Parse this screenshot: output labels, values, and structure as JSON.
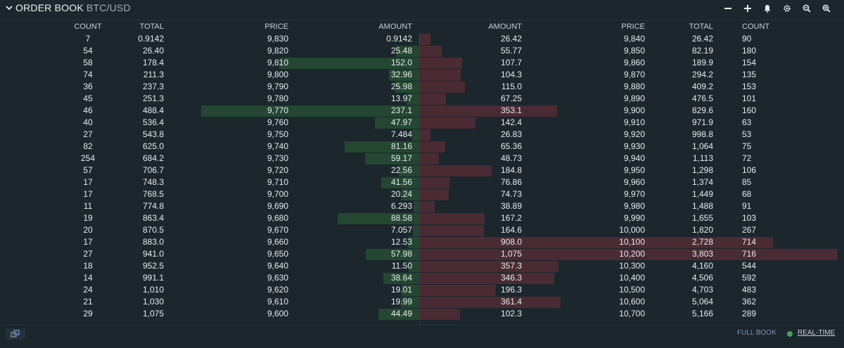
{
  "header": {
    "title": "ORDER BOOK",
    "pair": "BTC/USD",
    "tools": [
      "minus-icon",
      "plus-icon",
      "bell-icon",
      "gear-icon",
      "zoom-out-icon",
      "zoom-in-icon"
    ]
  },
  "columns": {
    "bids": [
      "COUNT",
      "TOTAL",
      "PRICE",
      "AMOUNT"
    ],
    "asks": [
      "AMOUNT",
      "PRICE",
      "TOTAL",
      "COUNT"
    ]
  },
  "colors": {
    "bid_bar": "#244732",
    "ask_bar": "#4a2b33",
    "background": "#1b262d"
  },
  "bids": [
    {
      "count": "7",
      "total": "0.9142",
      "price": "9,830",
      "amount": "0.9142"
    },
    {
      "count": "54",
      "total": "26.40",
      "price": "9,820",
      "amount": "25.48"
    },
    {
      "count": "58",
      "total": "178.4",
      "price": "9,810",
      "amount": "152.0"
    },
    {
      "count": "74",
      "total": "211.3",
      "price": "9,800",
      "amount": "32.96"
    },
    {
      "count": "36",
      "total": "237.3",
      "price": "9,790",
      "amount": "25.98"
    },
    {
      "count": "45",
      "total": "251.3",
      "price": "9,780",
      "amount": "13.97"
    },
    {
      "count": "46",
      "total": "488.4",
      "price": "9,770",
      "amount": "237.1"
    },
    {
      "count": "40",
      "total": "536.4",
      "price": "9,760",
      "amount": "47.97"
    },
    {
      "count": "27",
      "total": "543.8",
      "price": "9,750",
      "amount": "7.484"
    },
    {
      "count": "82",
      "total": "625.0",
      "price": "9,740",
      "amount": "81.16"
    },
    {
      "count": "254",
      "total": "684.2",
      "price": "9,730",
      "amount": "59.17"
    },
    {
      "count": "57",
      "total": "706.7",
      "price": "9,720",
      "amount": "22.56"
    },
    {
      "count": "17",
      "total": "748.3",
      "price": "9,710",
      "amount": "41.56"
    },
    {
      "count": "17",
      "total": "768.5",
      "price": "9,700",
      "amount": "20.24"
    },
    {
      "count": "11",
      "total": "774.8",
      "price": "9,690",
      "amount": "6.293"
    },
    {
      "count": "19",
      "total": "863.4",
      "price": "9,680",
      "amount": "88.58"
    },
    {
      "count": "20",
      "total": "870.5",
      "price": "9,670",
      "amount": "7.057"
    },
    {
      "count": "17",
      "total": "883.0",
      "price": "9,660",
      "amount": "12.53"
    },
    {
      "count": "27",
      "total": "941.0",
      "price": "9,650",
      "amount": "57.98"
    },
    {
      "count": "18",
      "total": "952.5",
      "price": "9,640",
      "amount": "11.50"
    },
    {
      "count": "14",
      "total": "991.1",
      "price": "9,630",
      "amount": "38.64"
    },
    {
      "count": "24",
      "total": "1,010",
      "price": "9,620",
      "amount": "19.01"
    },
    {
      "count": "21",
      "total": "1,030",
      "price": "9,610",
      "amount": "19.99"
    },
    {
      "count": "29",
      "total": "1,075",
      "price": "9,600",
      "amount": "44.49"
    }
  ],
  "asks": [
    {
      "amount": "26.42",
      "price": "9,840",
      "total": "26.42",
      "count": "90"
    },
    {
      "amount": "55.77",
      "price": "9,850",
      "total": "82.19",
      "count": "180"
    },
    {
      "amount": "107.7",
      "price": "9,860",
      "total": "189.9",
      "count": "154"
    },
    {
      "amount": "104.3",
      "price": "9,870",
      "total": "294.2",
      "count": "135"
    },
    {
      "amount": "115.0",
      "price": "9,880",
      "total": "409.2",
      "count": "153"
    },
    {
      "amount": "67.25",
      "price": "9,890",
      "total": "476.5",
      "count": "101"
    },
    {
      "amount": "353.1",
      "price": "9,900",
      "total": "829.6",
      "count": "160"
    },
    {
      "amount": "142.4",
      "price": "9,910",
      "total": "971.9",
      "count": "63"
    },
    {
      "amount": "26.83",
      "price": "9,920",
      "total": "998.8",
      "count": "53"
    },
    {
      "amount": "65.36",
      "price": "9,930",
      "total": "1,064",
      "count": "75"
    },
    {
      "amount": "48.73",
      "price": "9,940",
      "total": "1,113",
      "count": "72"
    },
    {
      "amount": "184.8",
      "price": "9,950",
      "total": "1,298",
      "count": "106"
    },
    {
      "amount": "76.86",
      "price": "9,960",
      "total": "1,374",
      "count": "85"
    },
    {
      "amount": "74.73",
      "price": "9,970",
      "total": "1,449",
      "count": "68"
    },
    {
      "amount": "38.89",
      "price": "9,980",
      "total": "1,488",
      "count": "91"
    },
    {
      "amount": "167.2",
      "price": "9,990",
      "total": "1,655",
      "count": "103"
    },
    {
      "amount": "164.6",
      "price": "10,000",
      "total": "1,820",
      "count": "267"
    },
    {
      "amount": "908.0",
      "price": "10,100",
      "total": "2,728",
      "count": "714"
    },
    {
      "amount": "1,075",
      "price": "10,200",
      "total": "3,803",
      "count": "716"
    },
    {
      "amount": "357.3",
      "price": "10,300",
      "total": "4,160",
      "count": "544"
    },
    {
      "amount": "346.3",
      "price": "10,400",
      "total": "4,506",
      "count": "592"
    },
    {
      "amount": "196.3",
      "price": "10,500",
      "total": "4,703",
      "count": "483"
    },
    {
      "amount": "361.4",
      "price": "10,600",
      "total": "5,064",
      "count": "362"
    },
    {
      "amount": "102.3",
      "price": "10,700",
      "total": "5,166",
      "count": "289"
    }
  ],
  "footer": {
    "full_book": "FULL BOOK",
    "realtime": "REAL-TIME"
  }
}
